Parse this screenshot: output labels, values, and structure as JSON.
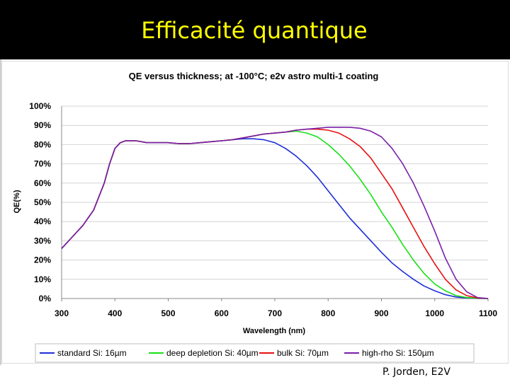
{
  "slide": {
    "title": "Efficacité quantique",
    "credit": "P. Jorden, E2V"
  },
  "chart_data": {
    "type": "line",
    "title": "QE  versus thickness; at -100°C; e2v astro multi-1 coating",
    "xlabel": "Wavelength (nm)",
    "ylabel": "QE(%)",
    "xlim": [
      300,
      1100
    ],
    "ylim": [
      0,
      100
    ],
    "xticks": [
      300,
      400,
      500,
      600,
      700,
      800,
      900,
      1000,
      1100
    ],
    "yticks": [
      0,
      10,
      20,
      30,
      40,
      50,
      60,
      70,
      80,
      90,
      100
    ],
    "ytick_suffix": "%",
    "grid": "horizontal",
    "legend_position": "bottom",
    "series": [
      {
        "name": "standard  Si: 16µm",
        "color": "#1f2fd8",
        "x": [
          300,
          320,
          340,
          360,
          380,
          390,
          400,
          410,
          420,
          440,
          460,
          480,
          500,
          520,
          540,
          560,
          580,
          600,
          620,
          640,
          660,
          680,
          700,
          720,
          740,
          760,
          780,
          800,
          820,
          840,
          860,
          880,
          900,
          920,
          940,
          960,
          980,
          1000,
          1020,
          1040,
          1060,
          1080,
          1100
        ],
        "y": [
          26,
          32,
          38,
          46,
          60,
          70,
          78,
          81,
          82,
          82,
          81,
          81,
          81,
          80.5,
          80.5,
          81,
          81.5,
          82,
          82.5,
          83,
          83,
          82.5,
          81,
          78,
          74,
          69,
          63,
          56,
          49,
          42,
          36,
          30,
          24,
          18.5,
          14,
          10,
          6.5,
          4,
          2,
          0.8,
          0.3,
          0,
          0
        ]
      },
      {
        "name": "deep depletion Si: 40µm",
        "color": "#18e018",
        "x": [
          300,
          320,
          340,
          360,
          380,
          390,
          400,
          410,
          420,
          440,
          460,
          480,
          500,
          520,
          540,
          560,
          580,
          600,
          620,
          640,
          660,
          680,
          700,
          720,
          740,
          760,
          780,
          800,
          820,
          840,
          860,
          880,
          900,
          920,
          940,
          960,
          980,
          1000,
          1020,
          1040,
          1060,
          1080,
          1100
        ],
        "y": [
          26,
          32,
          38,
          46,
          60,
          70,
          78,
          81,
          82,
          82,
          81,
          81,
          81,
          80.5,
          80.5,
          81,
          81.5,
          82,
          82.5,
          83.5,
          84.5,
          85.5,
          86,
          86.5,
          87,
          86,
          84,
          80,
          75,
          69,
          62,
          54,
          45,
          37,
          28,
          20,
          13,
          7.5,
          4,
          1.5,
          0.5,
          0.1,
          0
        ]
      },
      {
        "name": "bulk Si: 70µm",
        "color": "#e81010",
        "x": [
          300,
          320,
          340,
          360,
          380,
          390,
          400,
          410,
          420,
          440,
          460,
          480,
          500,
          520,
          540,
          560,
          580,
          600,
          620,
          640,
          660,
          680,
          700,
          720,
          740,
          760,
          780,
          800,
          820,
          840,
          860,
          880,
          900,
          920,
          940,
          960,
          980,
          1000,
          1020,
          1040,
          1060,
          1080,
          1100
        ],
        "y": [
          26,
          32,
          38,
          46,
          60,
          70,
          78,
          81,
          82,
          82,
          81,
          81,
          81,
          80.5,
          80.5,
          81,
          81.5,
          82,
          82.5,
          83.5,
          84.5,
          85.5,
          86,
          86.5,
          87.5,
          88,
          88,
          87.5,
          86,
          83,
          79,
          73,
          65,
          57,
          47,
          37,
          27,
          18,
          10,
          4.5,
          1.5,
          0.3,
          0
        ]
      },
      {
        "name": "high-rho Si: 150µm",
        "color": "#7a20a8",
        "x": [
          300,
          320,
          340,
          360,
          380,
          390,
          400,
          410,
          420,
          440,
          460,
          480,
          500,
          520,
          540,
          560,
          580,
          600,
          620,
          640,
          660,
          680,
          700,
          720,
          740,
          760,
          780,
          800,
          820,
          840,
          860,
          880,
          900,
          920,
          940,
          960,
          980,
          1000,
          1020,
          1040,
          1060,
          1080,
          1100
        ],
        "y": [
          26,
          32,
          38,
          46,
          60,
          70,
          78,
          81,
          82,
          82,
          81,
          81,
          81,
          80.5,
          80.5,
          81,
          81.5,
          82,
          82.5,
          83.5,
          84.5,
          85.5,
          86,
          86.5,
          87.5,
          88,
          88.5,
          89,
          89,
          89,
          88.5,
          87,
          84,
          78,
          70,
          60,
          48,
          35,
          21,
          10,
          3.5,
          0.5,
          0
        ]
      }
    ]
  }
}
